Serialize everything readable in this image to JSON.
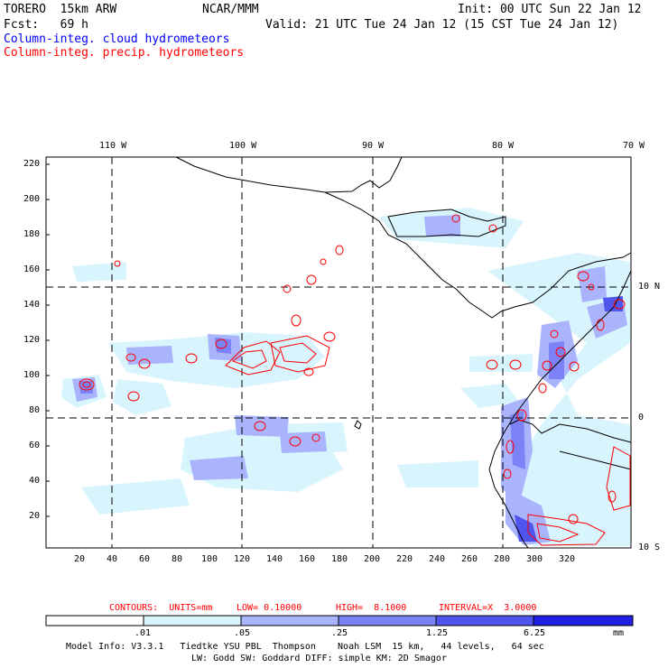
{
  "header": {
    "model": "TORERO  15km ARW",
    "org": "NCAR/MMM",
    "init": "Init: 00 UTC Sun 22 Jan 12",
    "fcst": "Fcst:   69 h",
    "valid": "Valid: 21 UTC Tue 24 Jan 12 (15 CST Tue 24 Jan 12)"
  },
  "fields": {
    "cloud_label": "Column-integ. cloud hydrometeors",
    "precip_label": "Column-integ. precip. hydrometeors"
  },
  "colors": {
    "cloud": "#0000ff",
    "precip": "#ff0000",
    "shade_1": "#d8f4fd",
    "shade_2": "#a9b4fd",
    "shade_3": "#7b83f7",
    "shade_4": "#5055ee",
    "shade_5": "#1f1fe6"
  },
  "top_axis": [
    "110 W",
    "100 W",
    "90 W",
    "80 W",
    "70 W"
  ],
  "right_axis": [
    "10 N",
    "0",
    "10 S"
  ],
  "left_axis": [
    "220",
    "200",
    "180",
    "160",
    "140",
    "120",
    "100",
    "80",
    "60",
    "40",
    "20"
  ],
  "bottom_axis": [
    "20",
    "40",
    "60",
    "80",
    "100",
    "120",
    "140",
    "160",
    "180",
    "200",
    "220",
    "240",
    "260",
    "280",
    "300",
    "320"
  ],
  "contours_line": {
    "label": "CONTOURS:  UNITS=mm",
    "low": "LOW= 0.10000",
    "high": "HIGH=  8.1000",
    "interval": "INTERVAL=X  3.0000"
  },
  "colorbar": {
    "ticks": [
      ".01",
      ".05",
      ".25",
      "1.25",
      "6.25"
    ],
    "units": "mm"
  },
  "footer": {
    "line1": "Model Info: V3.3.1   Tiedtke YSU PBL  Thompson    Noah LSM  15 km,   44 levels,   64 sec",
    "line2": "LW: Godd SW: Goddard DIFF: simple KM: 2D Smagor"
  }
}
